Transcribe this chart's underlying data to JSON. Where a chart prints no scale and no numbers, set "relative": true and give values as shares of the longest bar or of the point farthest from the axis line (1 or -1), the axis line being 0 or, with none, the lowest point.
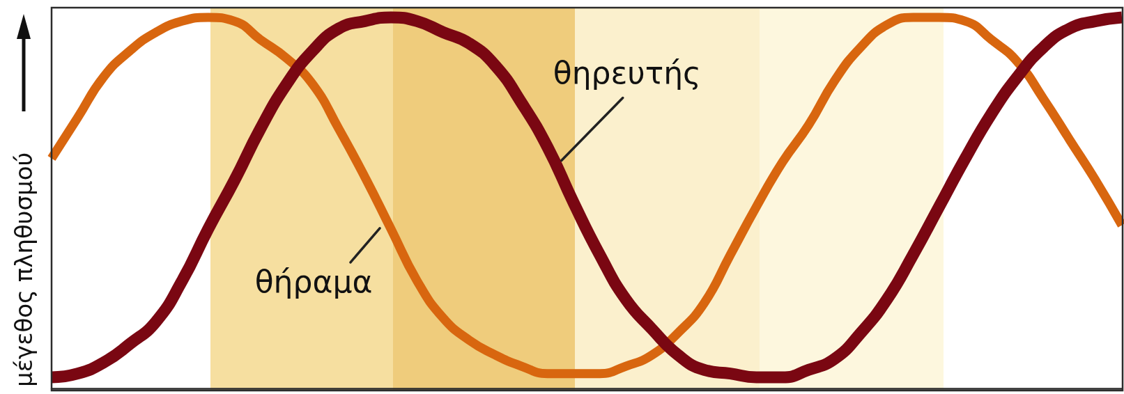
{
  "chart_data": {
    "type": "line",
    "relative": true,
    "ylabel": "μέγεθος πληθυσμού",
    "categories": [
      null,
      null,
      null,
      null,
      null,
      null,
      null,
      null,
      null,
      null,
      null,
      null,
      null,
      null,
      null,
      null,
      null,
      null,
      null,
      null,
      null,
      null,
      null,
      null,
      null,
      null,
      null,
      null,
      null,
      null,
      null,
      null,
      null,
      null,
      null,
      null,
      null,
      null,
      null,
      null,
      null,
      null
    ],
    "series": [
      {
        "name": "θήραμα",
        "color": "#d8660f",
        "values": [
          0.62,
          0.73,
          0.84,
          0.91,
          0.96,
          0.99,
          1,
          0.99,
          0.94,
          0.89,
          0.82,
          0.7,
          0.57,
          0.43,
          0.29,
          0.19,
          0.13,
          0.09,
          0.06,
          0.04,
          0.04,
          0.04,
          0.06,
          0.09,
          0.15,
          0.23,
          0.36,
          0.49,
          0.61,
          0.71,
          0.83,
          0.92,
          0.98,
          1,
          1,
          0.99,
          0.94,
          0.88,
          0.78,
          0.67,
          0.56,
          0.44
        ]
      },
      {
        "name": "θηρευτής",
        "color": "#7a0712",
        "values": [
          0.03,
          0.04,
          0.07,
          0.12,
          0.18,
          0.29,
          0.43,
          0.56,
          0.7,
          0.82,
          0.91,
          0.97,
          0.99,
          1,
          0.99,
          0.96,
          0.93,
          0.87,
          0.77,
          0.65,
          0.5,
          0.36,
          0.24,
          0.16,
          0.09,
          0.05,
          0.04,
          0.03,
          0.03,
          0.05,
          0.08,
          0.15,
          0.24,
          0.36,
          0.49,
          0.62,
          0.74,
          0.84,
          0.92,
          0.97,
          0.99,
          1
        ]
      }
    ]
  }
}
